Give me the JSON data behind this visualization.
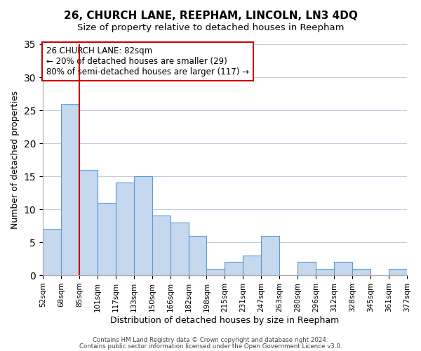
{
  "title": "26, CHURCH LANE, REEPHAM, LINCOLN, LN3 4DQ",
  "subtitle": "Size of property relative to detached houses in Reepham",
  "xlabel": "Distribution of detached houses by size in Reepham",
  "ylabel": "Number of detached properties",
  "bin_labels": [
    "52sqm",
    "68sqm",
    "85sqm",
    "101sqm",
    "117sqm",
    "133sqm",
    "150sqm",
    "166sqm",
    "182sqm",
    "198sqm",
    "215sqm",
    "231sqm",
    "247sqm",
    "263sqm",
    "280sqm",
    "296sqm",
    "312sqm",
    "328sqm",
    "345sqm",
    "361sqm",
    "377sqm"
  ],
  "bar_values": [
    7,
    26,
    16,
    11,
    14,
    15,
    9,
    8,
    6,
    1,
    2,
    3,
    6,
    0,
    2,
    1,
    2,
    1,
    0,
    1
  ],
  "bar_color": "#c5d8ed",
  "bar_edge_color": "#5b9bd5",
  "vline_color": "#cc0000",
  "ylim": [
    0,
    35
  ],
  "yticks": [
    0,
    5,
    10,
    15,
    20,
    25,
    30,
    35
  ],
  "annotation_text": "26 CHURCH LANE: 82sqm\n← 20% of detached houses are smaller (29)\n80% of semi-detached houses are larger (117) →",
  "annotation_box_edgecolor": "#cc0000",
  "footer_line1": "Contains HM Land Registry data © Crown copyright and database right 2024.",
  "footer_line2": "Contains public sector information licensed under the Open Government Licence v3.0.",
  "background_color": "#ffffff",
  "grid_color": "#c0cfe0"
}
